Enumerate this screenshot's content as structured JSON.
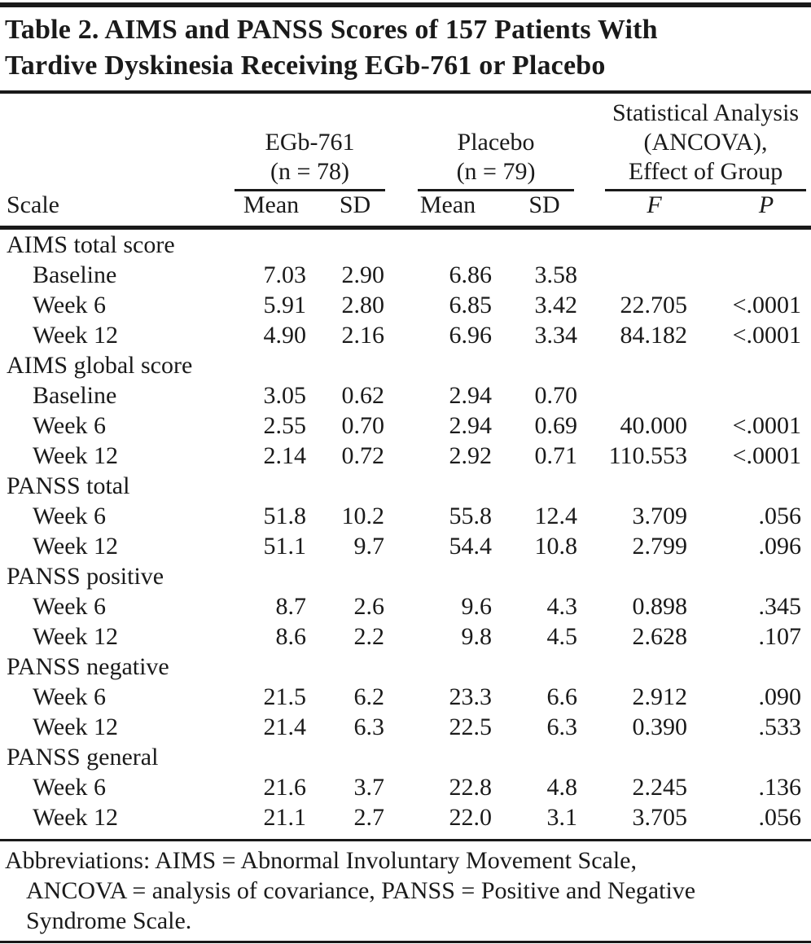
{
  "title": {
    "line1": "Table 2. AIMS and PANSS Scores of 157 Patients With",
    "line2": "Tardive Dyskinesia Receiving EGb-761 or Placebo"
  },
  "header": {
    "scale_label": "Scale",
    "groups": [
      {
        "line1": "EGb-761",
        "line2": "(n = 78)"
      },
      {
        "line1": "Placebo",
        "line2": "(n = 79)"
      },
      {
        "line1": "Statistical Analysis",
        "line2": "(ANCOVA),",
        "line3": "Effect of Group"
      }
    ],
    "subheaders": {
      "mean1": "Mean",
      "sd1": "SD",
      "mean2": "Mean",
      "sd2": "SD",
      "f": "F",
      "p": "P"
    }
  },
  "rows": [
    {
      "type": "section",
      "label": "AIMS total score"
    },
    {
      "type": "data",
      "label": "Baseline",
      "c": [
        "7.03",
        "2.90",
        "6.86",
        "3.58",
        "",
        ""
      ]
    },
    {
      "type": "data",
      "label": "Week 6",
      "c": [
        "5.91",
        "2.80",
        "6.85",
        "3.42",
        "22.705",
        "<.0001"
      ]
    },
    {
      "type": "data",
      "label": "Week 12",
      "c": [
        "4.90",
        "2.16",
        "6.96",
        "3.34",
        "84.182",
        "<.0001"
      ]
    },
    {
      "type": "section",
      "label": "AIMS global score"
    },
    {
      "type": "data",
      "label": "Baseline",
      "c": [
        "3.05",
        "0.62",
        "2.94",
        "0.70",
        "",
        ""
      ]
    },
    {
      "type": "data",
      "label": "Week 6",
      "c": [
        "2.55",
        "0.70",
        "2.94",
        "0.69",
        "40.000",
        "<.0001"
      ]
    },
    {
      "type": "data",
      "label": "Week 12",
      "c": [
        "2.14",
        "0.72",
        "2.92",
        "0.71",
        "110.553",
        "<.0001"
      ]
    },
    {
      "type": "section",
      "label": "PANSS total"
    },
    {
      "type": "data",
      "label": "Week 6",
      "c": [
        "51.8",
        "10.2",
        "55.8",
        "12.4",
        "3.709",
        ".056"
      ]
    },
    {
      "type": "data",
      "label": "Week 12",
      "c": [
        "51.1",
        "9.7",
        "54.4",
        "10.8",
        "2.799",
        ".096"
      ]
    },
    {
      "type": "section",
      "label": "PANSS positive"
    },
    {
      "type": "data",
      "label": "Week 6",
      "c": [
        "8.7",
        "2.6",
        "9.6",
        "4.3",
        "0.898",
        ".345"
      ]
    },
    {
      "type": "data",
      "label": "Week 12",
      "c": [
        "8.6",
        "2.2",
        "9.8",
        "4.5",
        "2.628",
        ".107"
      ]
    },
    {
      "type": "section",
      "label": "PANSS negative"
    },
    {
      "type": "data",
      "label": "Week 6",
      "c": [
        "21.5",
        "6.2",
        "23.3",
        "6.6",
        "2.912",
        ".090"
      ]
    },
    {
      "type": "data",
      "label": "Week 12",
      "c": [
        "21.4",
        "6.3",
        "22.5",
        "6.3",
        "0.390",
        ".533"
      ]
    },
    {
      "type": "section",
      "label": "PANSS general"
    },
    {
      "type": "data",
      "label": "Week 6",
      "c": [
        "21.6",
        "3.7",
        "22.8",
        "4.8",
        "2.245",
        ".136"
      ]
    },
    {
      "type": "data",
      "label": "Week 12",
      "c": [
        "21.1",
        "2.7",
        "22.0",
        "3.1",
        "3.705",
        ".056"
      ]
    }
  ],
  "footnote": {
    "line1": "Abbreviations: AIMS = Abnormal Involuntary Movement Scale,",
    "line2": "ANCOVA = analysis of covariance, PANSS = Positive and Negative",
    "line3": "Syndrome Scale."
  },
  "colors": {
    "text": "#1a1a1a",
    "rule": "#1a1a1a",
    "background": "#ffffff"
  }
}
